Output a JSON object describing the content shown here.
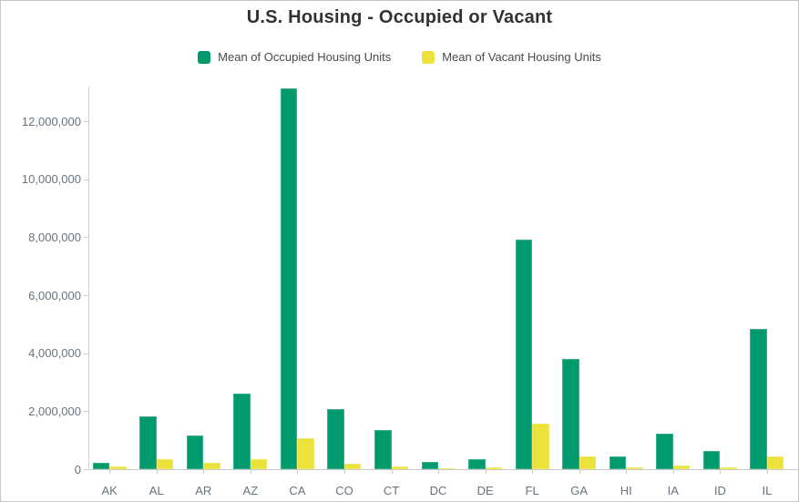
{
  "window": {
    "background": "#ffffff",
    "border_color": "#c6c6c6"
  },
  "chart_data": {
    "type": "bar",
    "title": "U.S. Housing - Occupied or Vacant",
    "xlabel": "",
    "ylabel": "",
    "grid": false,
    "legend_position": "top",
    "categories": [
      "AK",
      "AL",
      "AR",
      "AZ",
      "CA",
      "CO",
      "CT",
      "DC",
      "DE",
      "FL",
      "GA",
      "HI",
      "IA",
      "ID",
      "IL"
    ],
    "series": [
      {
        "name": "Mean of Occupied Housing Units",
        "color": "#009a6d",
        "values": [
          230000,
          1830000,
          1160000,
          2600000,
          13130000,
          2070000,
          1350000,
          250000,
          330000,
          7920000,
          3800000,
          440000,
          1230000,
          630000,
          4840000
        ]
      },
      {
        "name": "Mean of Vacant Housing Units",
        "color": "#ece23c",
        "values": [
          80000,
          350000,
          210000,
          360000,
          1070000,
          190000,
          100000,
          40000,
          60000,
          1570000,
          450000,
          70000,
          110000,
          60000,
          450000
        ]
      }
    ],
    "ylim": [
      0,
      13200000
    ],
    "y_tick_values": [
      0,
      2000000,
      4000000,
      6000000,
      8000000,
      10000000,
      12000000
    ],
    "y_tick_labels": [
      "0",
      "2,000,000",
      "4,000,000",
      "6,000,000",
      "8,000,000",
      "10,000,000",
      "12,000,000"
    ]
  },
  "colors": {
    "title_text": "#323232",
    "legend_text": "#4a4a4a",
    "axis_label_text": "#68737d",
    "axis_line": "#c9c9c9"
  }
}
